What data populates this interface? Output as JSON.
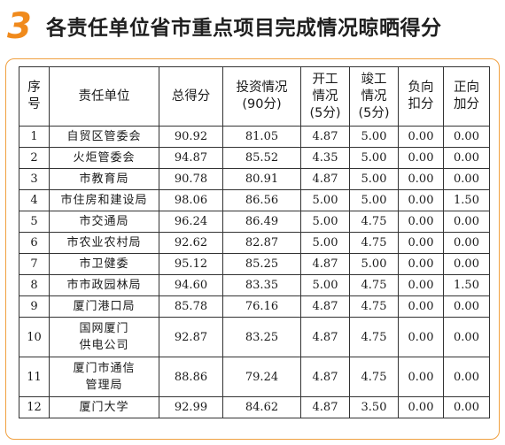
{
  "header": {
    "number": "3",
    "title": "各责任单位省市重点项目完成情况晾晒得分"
  },
  "table": {
    "columns": [
      {
        "lines": [
          "序",
          "号"
        ]
      },
      {
        "lines": [
          "责任单位"
        ]
      },
      {
        "lines": [
          "总得分"
        ]
      },
      {
        "lines": [
          "投资情况",
          "(90分)"
        ]
      },
      {
        "lines": [
          "开工",
          "情况",
          "(5分)"
        ]
      },
      {
        "lines": [
          "竣工",
          "情况",
          "(5分)"
        ]
      },
      {
        "lines": [
          "负向",
          "扣分"
        ]
      },
      {
        "lines": [
          "正向",
          "加分"
        ]
      }
    ],
    "rows": [
      {
        "no": "1",
        "unit": [
          "自贸区管委会"
        ],
        "total": "90.92",
        "invest": "81.05",
        "start": "4.87",
        "finish": "5.00",
        "neg": "0.00",
        "pos": "0.00"
      },
      {
        "no": "2",
        "unit": [
          "火炬管委会"
        ],
        "total": "94.87",
        "invest": "85.52",
        "start": "4.35",
        "finish": "5.00",
        "neg": "0.00",
        "pos": "0.00"
      },
      {
        "no": "3",
        "unit": [
          "市教育局"
        ],
        "total": "90.78",
        "invest": "80.91",
        "start": "4.87",
        "finish": "5.00",
        "neg": "0.00",
        "pos": "0.00"
      },
      {
        "no": "4",
        "unit": [
          "市住房和建设局"
        ],
        "total": "98.06",
        "invest": "86.56",
        "start": "5.00",
        "finish": "5.00",
        "neg": "0.00",
        "pos": "1.50"
      },
      {
        "no": "5",
        "unit": [
          "市交通局"
        ],
        "total": "96.24",
        "invest": "86.49",
        "start": "5.00",
        "finish": "4.75",
        "neg": "0.00",
        "pos": "0.00"
      },
      {
        "no": "6",
        "unit": [
          "市农业农村局"
        ],
        "total": "92.62",
        "invest": "82.87",
        "start": "5.00",
        "finish": "4.75",
        "neg": "0.00",
        "pos": "0.00"
      },
      {
        "no": "7",
        "unit": [
          "市卫健委"
        ],
        "total": "95.12",
        "invest": "85.25",
        "start": "4.87",
        "finish": "5.00",
        "neg": "0.00",
        "pos": "0.00"
      },
      {
        "no": "8",
        "unit": [
          "市市政园林局"
        ],
        "total": "94.60",
        "invest": "83.35",
        "start": "5.00",
        "finish": "4.75",
        "neg": "0.00",
        "pos": "1.50"
      },
      {
        "no": "9",
        "unit": [
          "厦门港口局"
        ],
        "total": "85.78",
        "invest": "76.16",
        "start": "4.87",
        "finish": "4.75",
        "neg": "0.00",
        "pos": "0.00"
      },
      {
        "no": "10",
        "unit": [
          "国网厦门",
          "供电公司"
        ],
        "total": "92.87",
        "invest": "83.25",
        "start": "4.87",
        "finish": "4.75",
        "neg": "0.00",
        "pos": "0.00"
      },
      {
        "no": "11",
        "unit": [
          "厦门市通信",
          "管理局"
        ],
        "total": "88.86",
        "invest": "79.24",
        "start": "4.87",
        "finish": "4.75",
        "neg": "0.00",
        "pos": "0.00"
      },
      {
        "no": "12",
        "unit": [
          "厦门大学"
        ],
        "total": "92.99",
        "invest": "84.62",
        "start": "4.87",
        "finish": "3.50",
        "neg": "0.00",
        "pos": "0.00"
      }
    ]
  }
}
